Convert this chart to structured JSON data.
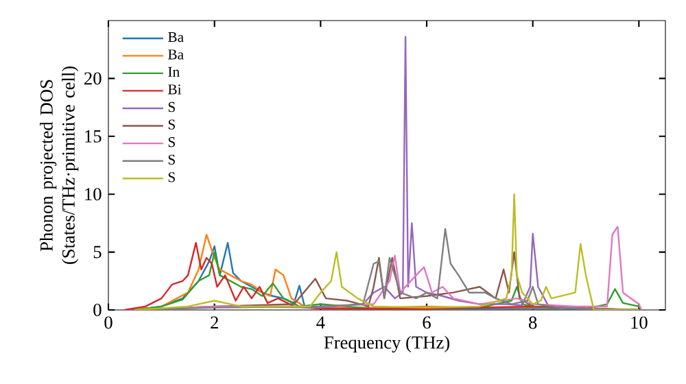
{
  "chart_data": {
    "type": "line",
    "xlabel": "Frequency (THz)",
    "ylabel": "Phonon projected DOS (States/THz·primitive cell)",
    "xlim": [
      0,
      10.5
    ],
    "ylim": [
      0,
      25
    ],
    "xticks": [
      0,
      2,
      4,
      6,
      8,
      10
    ],
    "yticks": [
      0,
      5,
      10,
      15,
      20
    ],
    "grid": false,
    "legend": "top left",
    "marker": "none",
    "line_style": "solid",
    "series": [
      {
        "name": "Ba",
        "color": "#1f77b4",
        "x": [
          0.5,
          1.0,
          1.4,
          1.7,
          1.9,
          2.0,
          2.1,
          2.25,
          2.35,
          2.5,
          2.7,
          2.9,
          3.1,
          3.3,
          3.5,
          3.6,
          3.7,
          4.0,
          4.5,
          5,
          6,
          8,
          10
        ],
        "values": [
          0,
          0.3,
          1.0,
          2.5,
          4.2,
          5.5,
          3.0,
          5.8,
          3.2,
          2.5,
          2.0,
          1.5,
          1.2,
          1.0,
          0.6,
          2.1,
          0.3,
          0.2,
          0.1,
          0.1,
          0.1,
          0.1,
          0
        ]
      },
      {
        "name": "Ba",
        "color": "#ff7f0e",
        "x": [
          0.5,
          1.0,
          1.5,
          1.7,
          1.85,
          2.0,
          2.1,
          2.3,
          2.5,
          2.7,
          2.9,
          3.05,
          3.15,
          3.3,
          3.45,
          3.7,
          4,
          5,
          6,
          7,
          8,
          10
        ],
        "values": [
          0,
          0.3,
          1.5,
          3.5,
          6.5,
          4.5,
          3.5,
          3.0,
          2.5,
          2.2,
          1.5,
          1.2,
          3.5,
          3.0,
          1.0,
          0.3,
          0.2,
          0.2,
          0.3,
          0.2,
          0.2,
          0
        ]
      },
      {
        "name": "In",
        "color": "#2ca02c",
        "x": [
          0.5,
          1.0,
          1.4,
          1.7,
          1.9,
          2.0,
          2.1,
          2.3,
          2.5,
          2.7,
          2.9,
          3.1,
          3.3,
          3.6,
          4,
          5,
          6,
          7,
          7.6,
          7.7,
          7.8,
          8,
          9,
          9.4,
          9.55,
          9.7,
          10,
          10.05
        ],
        "values": [
          0,
          0.3,
          0.9,
          2.5,
          3.0,
          5.0,
          3.0,
          2.5,
          2.0,
          1.8,
          1.2,
          2.3,
          1.0,
          0.3,
          0.5,
          0.1,
          0.1,
          0.2,
          0.8,
          2.0,
          0.5,
          0.3,
          0.1,
          0.5,
          1.8,
          0.6,
          0.3,
          0
        ]
      },
      {
        "name": "Bi",
        "color": "#d62728",
        "x": [
          0.3,
          0.7,
          1.0,
          1.2,
          1.4,
          1.5,
          1.65,
          1.75,
          1.85,
          1.95,
          2.05,
          2.2,
          2.4,
          2.55,
          2.7,
          2.85,
          3.0,
          3.2,
          3.5,
          4,
          5,
          6,
          8,
          10
        ],
        "values": [
          0,
          0.3,
          1.0,
          2.2,
          2.5,
          3.0,
          5.8,
          3.5,
          4.5,
          4.0,
          2.0,
          3.0,
          0.8,
          2.0,
          1.0,
          2.0,
          0.6,
          1.0,
          0.3,
          0.1,
          0.1,
          0.1,
          0.3,
          0
        ]
      },
      {
        "name": "S",
        "color": "#9467bd",
        "x": [
          0.5,
          2,
          4,
          4.8,
          5.0,
          5.2,
          5.4,
          5.55,
          5.6,
          5.65,
          5.72,
          5.8,
          6.0,
          6.3,
          6.6,
          7.0,
          7.5,
          7.8,
          7.95,
          8.0,
          8.1,
          8.3,
          9,
          10
        ],
        "values": [
          0,
          0.3,
          0.2,
          0.5,
          1.5,
          2.0,
          1.0,
          1.5,
          23.6,
          2.0,
          7.5,
          2.0,
          1.5,
          1.2,
          0.8,
          0.5,
          0.5,
          0.4,
          2.0,
          6.6,
          2.0,
          0.3,
          0.1,
          0
        ]
      },
      {
        "name": "S",
        "color": "#8c564b",
        "x": [
          0.5,
          2,
          3.5,
          3.9,
          4.1,
          4.5,
          4.9,
          5.0,
          5.1,
          5.2,
          5.35,
          5.5,
          6.0,
          6.5,
          7.0,
          7.3,
          7.45,
          7.55,
          7.65,
          7.75,
          8,
          9,
          10
        ],
        "values": [
          0,
          0.3,
          0.5,
          2.7,
          1.0,
          0.8,
          0.3,
          2.0,
          4.5,
          1.0,
          4.5,
          1.0,
          1.2,
          1.5,
          2.0,
          1.0,
          3.5,
          1.5,
          5.0,
          1.0,
          0.3,
          0.1,
          0
        ]
      },
      {
        "name": "S",
        "color": "#e377c2",
        "x": [
          0.5,
          2,
          4,
          5.0,
          5.3,
          5.4,
          5.5,
          5.8,
          5.95,
          6.1,
          6.3,
          6.5,
          7,
          7.7,
          8,
          8.8,
          9.4,
          9.5,
          9.6,
          9.7,
          10.0,
          10.05
        ],
        "values": [
          0,
          0.3,
          0.3,
          0.5,
          2.5,
          4.7,
          1.5,
          3.0,
          3.7,
          1.5,
          2.0,
          1.0,
          0.5,
          1.0,
          0.5,
          0.3,
          0.3,
          6.5,
          7.2,
          1.5,
          0.5,
          0
        ]
      },
      {
        "name": "S",
        "color": "#7f7f7f",
        "x": [
          0.5,
          2,
          4,
          4.8,
          5.0,
          5.1,
          5.2,
          5.3,
          5.5,
          5.8,
          6.0,
          6.2,
          6.35,
          6.45,
          6.6,
          6.8,
          7.1,
          7.3,
          7.6,
          7.9,
          8.0,
          8.1,
          8.5,
          9,
          10
        ],
        "values": [
          0,
          0.2,
          0.3,
          0.5,
          4.0,
          4.2,
          1.0,
          4.5,
          1.5,
          1.0,
          1.5,
          1.0,
          7.0,
          4.0,
          3.0,
          1.5,
          1.5,
          1.0,
          0.5,
          0.8,
          2.0,
          0.5,
          0.2,
          0.1,
          0
        ]
      },
      {
        "name": "S",
        "color": "#bcbd22",
        "x": [
          0.5,
          1.5,
          2.0,
          2.5,
          3.5,
          3.8,
          4.0,
          4.2,
          4.3,
          4.4,
          4.7,
          5,
          6,
          7,
          7.5,
          7.6,
          7.65,
          7.7,
          7.8,
          8.0,
          8.15,
          8.25,
          8.35,
          8.8,
          8.9,
          9.0,
          9.1,
          9.15,
          10
        ],
        "values": [
          0,
          0.3,
          0.8,
          0.3,
          0.3,
          0.3,
          1.5,
          2.5,
          5.0,
          2.0,
          1.0,
          0.3,
          0.2,
          0.3,
          1.0,
          3.0,
          10.0,
          3.0,
          1.5,
          0.5,
          0.8,
          2.0,
          1.0,
          1.5,
          5.7,
          3.0,
          1.0,
          0,
          0
        ]
      }
    ]
  }
}
